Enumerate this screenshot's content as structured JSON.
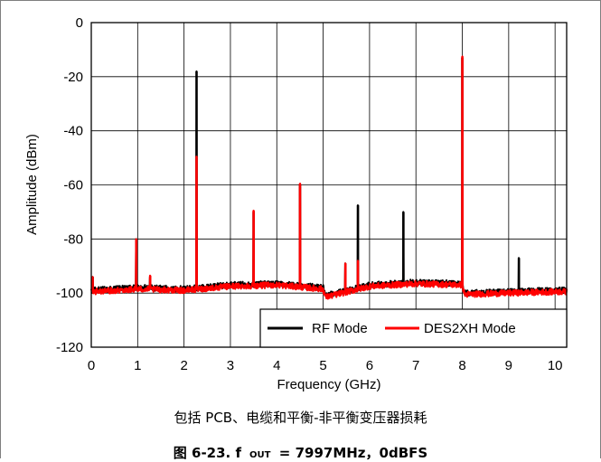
{
  "chart_data": {
    "type": "line",
    "ylabel": "Amplitude (dBm)",
    "xlabel": "Frequency (GHz)",
    "xlim": [
      0,
      10.25
    ],
    "ylim": [
      -120,
      0
    ],
    "x_ticks": [
      "0",
      "1",
      "2",
      "3",
      "4",
      "5",
      "6",
      "7",
      "8",
      "9",
      "10"
    ],
    "y_ticks": [
      "0",
      "-20",
      "-40",
      "-60",
      "-80",
      "-100",
      "-120"
    ],
    "grid": true,
    "legend_position": "bottom-right",
    "series": [
      {
        "name": "RF Mode",
        "color": "#000000",
        "noise_floor": [
          [
            0,
            -99
          ],
          [
            1,
            -98
          ],
          [
            2,
            -98.5
          ],
          [
            3,
            -97
          ],
          [
            4,
            -96.5
          ],
          [
            5,
            -98
          ],
          [
            5.05,
            -101
          ],
          [
            6,
            -97
          ],
          [
            7,
            -96
          ],
          [
            8,
            -96.5
          ],
          [
            8.05,
            -100
          ],
          [
            9,
            -99.5
          ],
          [
            10,
            -99
          ],
          [
            10.25,
            -99
          ]
        ],
        "spurs": [
          [
            0.03,
            -94
          ],
          [
            0.97,
            -80
          ],
          [
            1.27,
            -94
          ],
          [
            2.27,
            -18
          ],
          [
            3.5,
            -70
          ],
          [
            4.5,
            -60
          ],
          [
            5.48,
            -89
          ],
          [
            5.75,
            -67.5
          ],
          [
            6.73,
            -70
          ],
          [
            8.0,
            -13
          ],
          [
            9.22,
            -87
          ]
        ]
      },
      {
        "name": "DES2XH Mode",
        "color": "#ff0000",
        "noise_floor": [
          [
            0,
            -99.5
          ],
          [
            1,
            -98.5
          ],
          [
            2,
            -99
          ],
          [
            3,
            -97.5
          ],
          [
            4,
            -97
          ],
          [
            5,
            -98.5
          ],
          [
            5.05,
            -101.5
          ],
          [
            6,
            -97.5
          ],
          [
            7,
            -96.5
          ],
          [
            8,
            -97
          ],
          [
            8.05,
            -100.5
          ],
          [
            9,
            -100
          ],
          [
            10,
            -99.5
          ],
          [
            10.25,
            -99.5
          ]
        ],
        "spurs": [
          [
            0.03,
            -94
          ],
          [
            0.97,
            -80
          ],
          [
            1.27,
            -93.5
          ],
          [
            2.27,
            -49.5
          ],
          [
            3.5,
            -69.5
          ],
          [
            4.5,
            -59.5
          ],
          [
            5.48,
            -89
          ],
          [
            5.75,
            -88
          ],
          [
            8.0,
            -12.5
          ]
        ]
      }
    ]
  },
  "caption": "包括 PCB、电缆和平衡-非平衡变压器损耗",
  "figure_title": "图 6-23. f        = 7997MHz，0dBFS",
  "figure_title_sub": "OUT"
}
